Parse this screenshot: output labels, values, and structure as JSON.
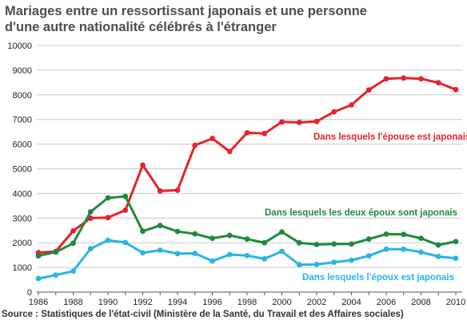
{
  "chart_data": {
    "type": "line",
    "title": "Mariages entre un ressortissant japonais et une personne",
    "subtitle": "d'une autre nationalité célébrés à l'étranger",
    "source": "Source : Statistiques de l'état-civil (Ministère de la Santé, du Travail et des Affaires sociales)",
    "xlabel": "",
    "ylabel": "",
    "ylim": [
      0,
      10000
    ],
    "yticks": [
      0,
      1000,
      2000,
      3000,
      4000,
      5000,
      6000,
      7000,
      8000,
      9000,
      10000
    ],
    "xticks": [
      1986,
      1988,
      1990,
      1992,
      1994,
      1996,
      1998,
      2000,
      2002,
      2004,
      2006,
      2008,
      2010
    ],
    "grid": true,
    "x": [
      1986,
      1987,
      1988,
      1989,
      1990,
      1991,
      1992,
      1993,
      1994,
      1995,
      1996,
      1997,
      1998,
      1999,
      2000,
      2001,
      2002,
      2003,
      2004,
      2005,
      2006,
      2007,
      2008,
      2009,
      2010
    ],
    "series": [
      {
        "name": "Dans lesquels l'épouse est japonaise",
        "color": "#e4232b",
        "values": [
          1600,
          1650,
          2480,
          3000,
          3020,
          3320,
          5150,
          4100,
          4130,
          5950,
          6230,
          5700,
          6460,
          6430,
          6900,
          6880,
          6920,
          7310,
          7590,
          8200,
          8650,
          8680,
          8650,
          8490,
          8210
        ]
      },
      {
        "name": "Dans lesquels les deux époux sont japonais",
        "color": "#1e8a3c",
        "values": [
          1470,
          1620,
          1980,
          3250,
          3820,
          3880,
          2470,
          2700,
          2460,
          2360,
          2180,
          2300,
          2150,
          2000,
          2440,
          2000,
          1930,
          1950,
          1950,
          2150,
          2350,
          2340,
          2180,
          1910,
          2050
        ]
      },
      {
        "name": "Dans lesquels l'époux est japonais",
        "color": "#2ab5e3",
        "values": [
          550,
          690,
          850,
          1760,
          2100,
          2010,
          1590,
          1700,
          1560,
          1570,
          1260,
          1520,
          1480,
          1350,
          1650,
          1110,
          1120,
          1210,
          1290,
          1470,
          1740,
          1740,
          1620,
          1440,
          1370
        ]
      }
    ]
  }
}
